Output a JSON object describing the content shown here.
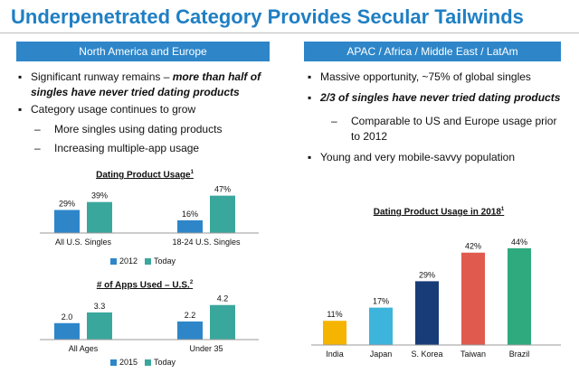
{
  "title": "Underpenetrated Category Provides Secular Tailwinds",
  "colors": {
    "accent": "#1f7fc4",
    "header": "#2e86c9",
    "blue": "#2e86c9",
    "teal": "#3aa79d",
    "yellow": "#f5b400",
    "cyan": "#3db4dc",
    "navy": "#173c78",
    "red": "#e05a4e",
    "green": "#2eaa7e"
  },
  "left": {
    "header": "North America and Europe",
    "bullet1_plain": "Significant runway remains – ",
    "bullet1_emph1": "more than half of",
    "bullet1_emph2": "singles have never tried dating products",
    "bullet2": "Category usage continues to grow",
    "sub1": "More singles using dating products",
    "sub2": "Increasing multiple-app usage",
    "bullet_mark": "▪",
    "sub_mark": "–"
  },
  "right": {
    "header": "APAC / Africa / Middle East / LatAm",
    "bullet1": "Massive opportunity, ~75% of global singles",
    "bullet2": "2/3 of singles have never tried dating products",
    "sub1_line1": "Comparable to US and Europe usage prior",
    "sub1_line2": "to 2012",
    "bullet3": "Young and very mobile-savvy population",
    "bullet_mark": "▪",
    "sub_mark": "–"
  },
  "chart_data": [
    {
      "type": "bar",
      "title": "Dating Product Usage",
      "title_sup": "1",
      "categories": [
        "All U.S. Singles",
        "18-24 U.S. Singles"
      ],
      "series": [
        {
          "name": "2012",
          "values": [
            29,
            16
          ],
          "labels": [
            "29%",
            "16%"
          ],
          "color": "#2e86c9"
        },
        {
          "name": "Today",
          "values": [
            39,
            47
          ],
          "labels": [
            "39%",
            "47%"
          ],
          "color": "#3aa79d"
        }
      ],
      "ylim": [
        0,
        50
      ],
      "legend": "bottom"
    },
    {
      "type": "bar",
      "title": "# of Apps Used – U.S.",
      "title_sup": "2",
      "categories": [
        "All Ages",
        "Under 35"
      ],
      "series": [
        {
          "name": "2015",
          "values": [
            2.0,
            2.2
          ],
          "labels": [
            "2.0",
            "2.2"
          ],
          "color": "#2e86c9"
        },
        {
          "name": "Today",
          "values": [
            3.3,
            4.2
          ],
          "labels": [
            "3.3",
            "4.2"
          ],
          "color": "#3aa79d"
        }
      ],
      "ylim": [
        0,
        4.5
      ],
      "legend": "bottom"
    },
    {
      "type": "bar",
      "title": "Dating Product Usage in 2018",
      "title_sup": "1",
      "categories": [
        "India",
        "Japan",
        "S. Korea",
        "Taiwan",
        "Brazil"
      ],
      "values": [
        11,
        17,
        29,
        42,
        44
      ],
      "labels": [
        "11%",
        "17%",
        "29%",
        "42%",
        "44%"
      ],
      "colors": [
        "#f5b400",
        "#3db4dc",
        "#173c78",
        "#e05a4e",
        "#2eaa7e"
      ],
      "ylim": [
        0,
        46
      ],
      "legend": "none"
    }
  ]
}
